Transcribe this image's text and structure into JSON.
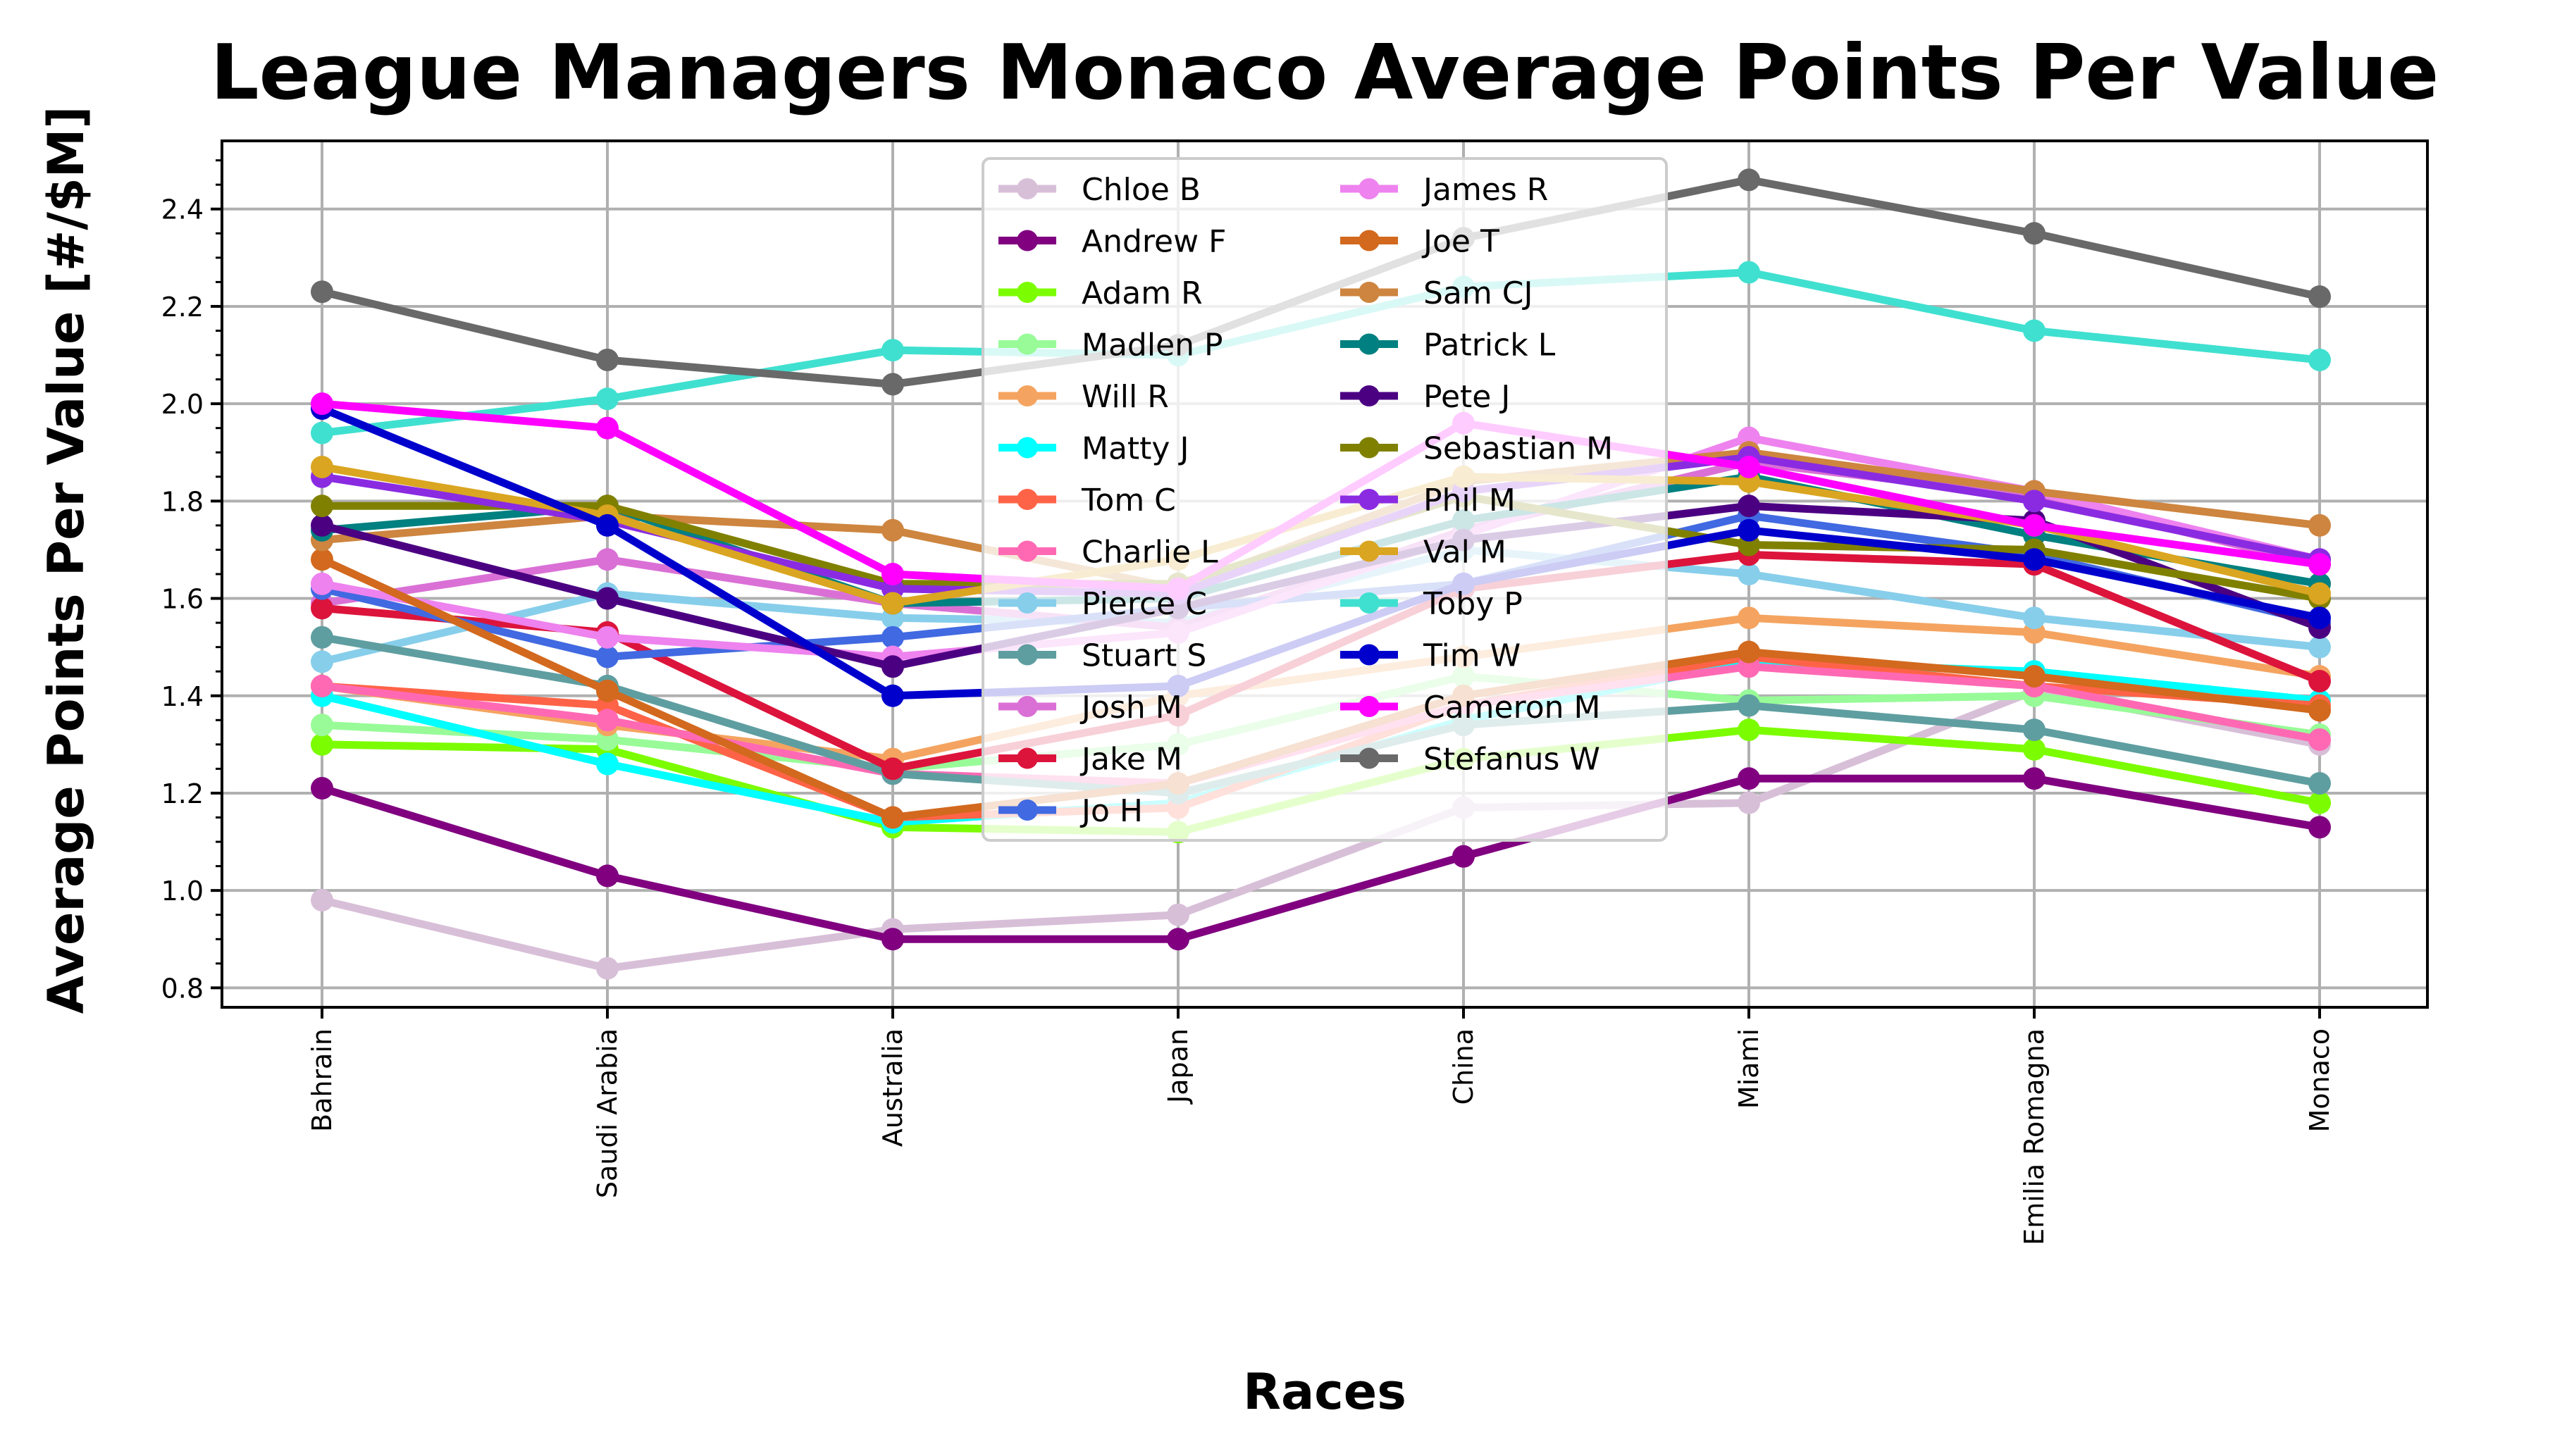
{
  "chart_data": {
    "type": "line",
    "title": "League Managers Monaco Average Points Per Value",
    "xlabel": "Races",
    "ylabel": "Average Points Per Value [#/$M]",
    "categories": [
      "Bahrain",
      "Saudi Arabia",
      "Australia",
      "Japan",
      "China",
      "Miami",
      "Emilia Romagna",
      "Monaco"
    ],
    "ylim": [
      0.76,
      2.54
    ],
    "yticks": [
      "0.8",
      "1.0",
      "1.2",
      "1.4",
      "1.6",
      "1.8",
      "2.0",
      "2.2",
      "2.4"
    ],
    "grid": true,
    "legend": {
      "placement": "upper-center",
      "columns": 2
    },
    "series": [
      {
        "name": "Chloe B",
        "color": "#d8bfd8",
        "values": [
          0.98,
          0.84,
          0.92,
          0.95,
          1.17,
          1.18,
          1.41,
          1.3
        ]
      },
      {
        "name": "Andrew F",
        "color": "#800080",
        "values": [
          1.21,
          1.03,
          0.9,
          0.9,
          1.07,
          1.23,
          1.23,
          1.13
        ]
      },
      {
        "name": "Adam R",
        "color": "#7cfc00",
        "values": [
          1.3,
          1.29,
          1.13,
          1.12,
          1.27,
          1.33,
          1.29,
          1.18
        ]
      },
      {
        "name": "Madlen P",
        "color": "#98fb98",
        "values": [
          1.34,
          1.31,
          1.25,
          1.3,
          1.44,
          1.39,
          1.4,
          1.32
        ]
      },
      {
        "name": "Will R",
        "color": "#f4a460",
        "values": [
          1.42,
          1.34,
          1.27,
          1.4,
          1.48,
          1.56,
          1.53,
          1.44
        ]
      },
      {
        "name": "Matty J",
        "color": "#00ffff",
        "values": [
          1.4,
          1.26,
          1.14,
          1.18,
          1.35,
          1.47,
          1.45,
          1.39
        ]
      },
      {
        "name": "Tom C",
        "color": "#ff6347",
        "values": [
          1.42,
          1.38,
          1.15,
          1.17,
          1.38,
          1.48,
          1.42,
          1.38
        ]
      },
      {
        "name": "Charlie L",
        "color": "#ff69b4",
        "values": [
          1.42,
          1.35,
          1.24,
          1.22,
          1.38,
          1.46,
          1.42,
          1.31
        ]
      },
      {
        "name": "Pierce C",
        "color": "#87ceeb",
        "values": [
          1.47,
          1.61,
          1.56,
          1.55,
          1.7,
          1.65,
          1.56,
          1.5
        ]
      },
      {
        "name": "Stuart S",
        "color": "#5f9ea0",
        "values": [
          1.52,
          1.42,
          1.24,
          1.2,
          1.34,
          1.38,
          1.33,
          1.22
        ]
      },
      {
        "name": "Josh M",
        "color": "#da70d6",
        "values": [
          1.59,
          1.68,
          1.59,
          1.54,
          1.74,
          1.88,
          1.81,
          1.67
        ]
      },
      {
        "name": "Jake M",
        "color": "#dc143c",
        "values": [
          1.58,
          1.53,
          1.25,
          1.36,
          1.62,
          1.69,
          1.67,
          1.43
        ]
      },
      {
        "name": "Jo H",
        "color": "#4169e1",
        "values": [
          1.62,
          1.48,
          1.52,
          1.58,
          1.63,
          1.77,
          1.69,
          1.55
        ]
      },
      {
        "name": "James R",
        "color": "#ee82ee",
        "values": [
          1.63,
          1.52,
          1.48,
          1.53,
          1.73,
          1.93,
          1.82,
          1.68
        ]
      },
      {
        "name": "Joe T",
        "color": "#d2691e",
        "values": [
          1.68,
          1.41,
          1.15,
          1.22,
          1.4,
          1.49,
          1.44,
          1.37
        ]
      },
      {
        "name": "Sam CJ",
        "color": "#cd853f",
        "values": [
          1.72,
          1.77,
          1.74,
          1.62,
          1.84,
          1.9,
          1.82,
          1.75
        ]
      },
      {
        "name": "Patrick L",
        "color": "#008080",
        "values": [
          1.74,
          1.79,
          1.59,
          1.6,
          1.76,
          1.85,
          1.73,
          1.63
        ]
      },
      {
        "name": "Pete J",
        "color": "#4b0082",
        "values": [
          1.75,
          1.6,
          1.46,
          1.58,
          1.72,
          1.79,
          1.76,
          1.54
        ]
      },
      {
        "name": "Sebastian M",
        "color": "#808000",
        "values": [
          1.79,
          1.79,
          1.63,
          1.63,
          1.81,
          1.71,
          1.7,
          1.6
        ]
      },
      {
        "name": "Phil M",
        "color": "#8a2be2",
        "values": [
          1.85,
          1.76,
          1.62,
          1.61,
          1.82,
          1.89,
          1.8,
          1.68
        ]
      },
      {
        "name": "Val M",
        "color": "#daa520",
        "values": [
          1.87,
          1.77,
          1.59,
          1.68,
          1.85,
          1.84,
          1.75,
          1.61
        ]
      },
      {
        "name": "Toby P",
        "color": "#40e0d0",
        "values": [
          1.94,
          2.01,
          2.11,
          2.1,
          2.24,
          2.27,
          2.15,
          2.09
        ]
      },
      {
        "name": "Tim W",
        "color": "#0000cd",
        "values": [
          1.99,
          1.75,
          1.4,
          1.42,
          1.63,
          1.74,
          1.68,
          1.56
        ]
      },
      {
        "name": "Cameron M",
        "color": "#ff00ff",
        "values": [
          2.0,
          1.95,
          1.65,
          1.62,
          1.96,
          1.87,
          1.75,
          1.67
        ]
      },
      {
        "name": "Stefanus W",
        "color": "#696969",
        "values": [
          2.23,
          2.09,
          2.04,
          2.12,
          2.34,
          2.46,
          2.35,
          2.22
        ]
      }
    ]
  }
}
